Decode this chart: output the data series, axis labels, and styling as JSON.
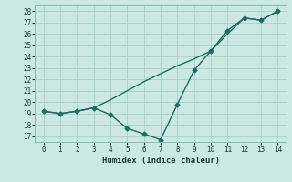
{
  "xlabel": "Humidex (Indice chaleur)",
  "ylabel": "",
  "background_color": "#cce8e4",
  "grid_color": "#aad4ce",
  "line_color": "#1a6e62",
  "x_line1": [
    0,
    1,
    2,
    3,
    4,
    5,
    6,
    7,
    8,
    9,
    10,
    11,
    12,
    13,
    14
  ],
  "y_line1": [
    19.2,
    19.0,
    19.2,
    19.5,
    18.9,
    17.7,
    17.2,
    16.7,
    19.8,
    22.8,
    24.5,
    26.3,
    27.4,
    27.2,
    28.0
  ],
  "x_line2": [
    0,
    1,
    2,
    3,
    4,
    5,
    6,
    7,
    8,
    9,
    10,
    11,
    12,
    13,
    14
  ],
  "y_line2": [
    19.2,
    19.0,
    19.2,
    19.5,
    20.2,
    21.0,
    21.8,
    22.5,
    23.2,
    23.8,
    24.5,
    26.0,
    27.4,
    27.2,
    28.0
  ],
  "ylim": [
    16.5,
    28.5
  ],
  "xlim": [
    -0.5,
    14.5
  ],
  "yticks": [
    17,
    18,
    19,
    20,
    21,
    22,
    23,
    24,
    25,
    26,
    27,
    28
  ],
  "xticks": [
    0,
    1,
    2,
    3,
    4,
    5,
    6,
    7,
    8,
    9,
    10,
    11,
    12,
    13,
    14
  ],
  "marker": "D",
  "marker_size": 2.5,
  "line_width": 1.0
}
